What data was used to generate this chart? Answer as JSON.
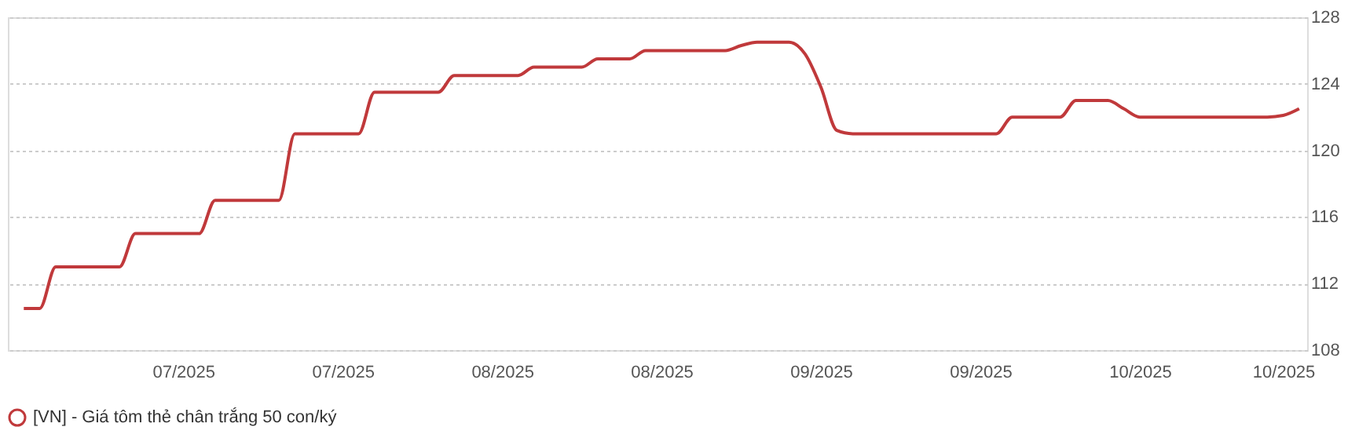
{
  "chart_data": {
    "type": "line",
    "categories": [
      null,
      null,
      null,
      null,
      null,
      null,
      null,
      null,
      null,
      null,
      "07/2025",
      null,
      null,
      null,
      null,
      null,
      null,
      null,
      null,
      null,
      "07/2025",
      null,
      null,
      null,
      null,
      null,
      null,
      null,
      null,
      null,
      "08/2025",
      null,
      null,
      null,
      null,
      null,
      null,
      null,
      null,
      null,
      "08/2025",
      null,
      null,
      null,
      null,
      null,
      null,
      null,
      null,
      null,
      "09/2025",
      null,
      null,
      null,
      null,
      null,
      null,
      null,
      null,
      null,
      "09/2025",
      null,
      null,
      null,
      null,
      null,
      null,
      null,
      null,
      null,
      "10/2025",
      null,
      null,
      null,
      null,
      null,
      null,
      null,
      null,
      "10/2025",
      null
    ],
    "series": [
      {
        "name": "[VN] - Giá tôm thẻ chân trắng 50 con/ký",
        "color": "#c0393b",
        "values": [
          110.5,
          110.5,
          113,
          113,
          113,
          113,
          113,
          115,
          115,
          115,
          115,
          115,
          117,
          117,
          117,
          117,
          117,
          121,
          121,
          121,
          121,
          121,
          123.5,
          123.5,
          123.5,
          123.5,
          123.5,
          124.5,
          124.5,
          124.5,
          124.5,
          124.5,
          125,
          125,
          125,
          125,
          125.5,
          125.5,
          125.5,
          126,
          126,
          126,
          126,
          126,
          126,
          126.3,
          126.5,
          126.5,
          126.5,
          125.8,
          123.8,
          121.2,
          121,
          121,
          121,
          121,
          121,
          121,
          121,
          121,
          121,
          121,
          122,
          122,
          122,
          122,
          123,
          123,
          123,
          122.5,
          122,
          122,
          122,
          122,
          122,
          122,
          122,
          122,
          122,
          122.1,
          122.5
        ]
      }
    ],
    "ylim": [
      108,
      128
    ],
    "yticks": [
      108,
      112,
      116,
      120,
      124,
      128
    ],
    "grid": "y",
    "legend": "bottom",
    "line_style": "solid"
  }
}
